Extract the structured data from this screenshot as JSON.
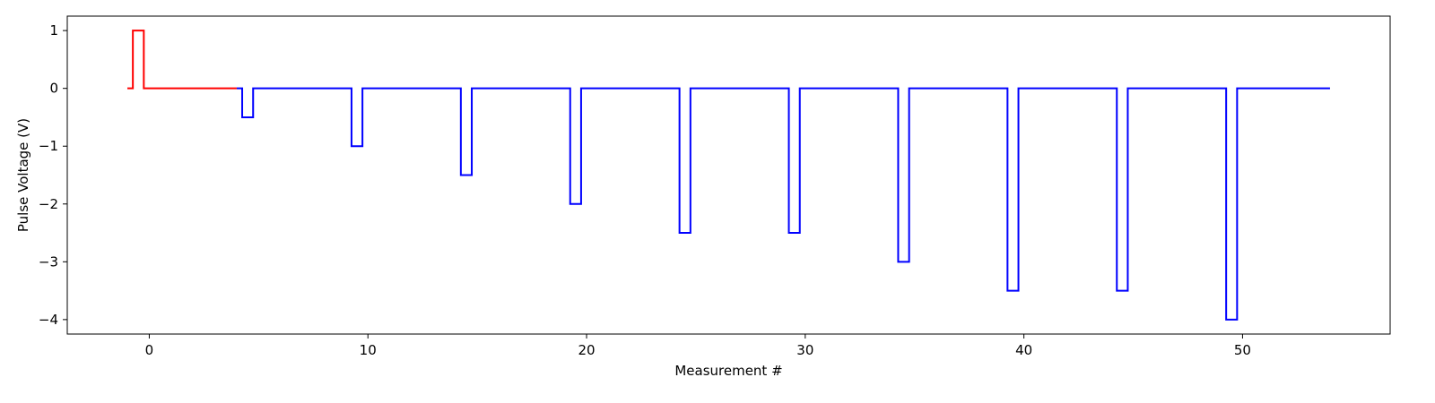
{
  "chart_data": {
    "type": "line",
    "xlabel": "Measurement #",
    "ylabel": "Pulse Voltage (V)",
    "xlim": [
      -3.75,
      56.75
    ],
    "ylim": [
      -4.25,
      1.25
    ],
    "xticks": [
      0,
      10,
      20,
      30,
      40,
      50
    ],
    "yticks": [
      1,
      0,
      -1,
      -2,
      -3,
      -4
    ],
    "xtick_labels": [
      "0",
      "10",
      "20",
      "30",
      "40",
      "50"
    ],
    "ytick_labels": [
      "1",
      "0",
      "−1",
      "−2",
      "−3",
      "−4"
    ],
    "grid": false,
    "series": [
      {
        "color": "#ff0000",
        "points": [
          [
            -1,
            0
          ],
          [
            -0.75,
            0
          ],
          [
            -0.75,
            1
          ],
          [
            -0.25,
            1
          ],
          [
            -0.25,
            0
          ],
          [
            4,
            0
          ]
        ]
      },
      {
        "color": "#0000ff",
        "points": [
          [
            4,
            0
          ],
          [
            4.25,
            0
          ],
          [
            4.25,
            -0.5
          ],
          [
            4.75,
            -0.5
          ],
          [
            4.75,
            0
          ],
          [
            9.25,
            0
          ],
          [
            9.25,
            -1
          ],
          [
            9.75,
            -1
          ],
          [
            9.75,
            0
          ],
          [
            14.25,
            0
          ],
          [
            14.25,
            -1.5
          ],
          [
            14.75,
            -1.5
          ],
          [
            14.75,
            0
          ],
          [
            19.25,
            0
          ],
          [
            19.25,
            -2
          ],
          [
            19.75,
            -2
          ],
          [
            19.75,
            0
          ],
          [
            24.25,
            0
          ],
          [
            24.25,
            -2.5
          ],
          [
            24.75,
            -2.5
          ],
          [
            24.75,
            0
          ],
          [
            29.25,
            0
          ],
          [
            29.25,
            -2.5
          ],
          [
            29.75,
            -2.5
          ],
          [
            29.75,
            0
          ],
          [
            34.25,
            0
          ],
          [
            34.25,
            -3
          ],
          [
            34.75,
            -3
          ],
          [
            34.75,
            0
          ],
          [
            39.25,
            0
          ],
          [
            39.25,
            -3.5
          ],
          [
            39.75,
            -3.5
          ],
          [
            39.75,
            0
          ],
          [
            44.25,
            0
          ],
          [
            44.25,
            -3.5
          ],
          [
            44.75,
            -3.5
          ],
          [
            44.75,
            0
          ],
          [
            49.25,
            0
          ],
          [
            49.25,
            -4
          ],
          [
            49.75,
            -4
          ],
          [
            49.75,
            0
          ],
          [
            54,
            0
          ]
        ]
      }
    ]
  }
}
